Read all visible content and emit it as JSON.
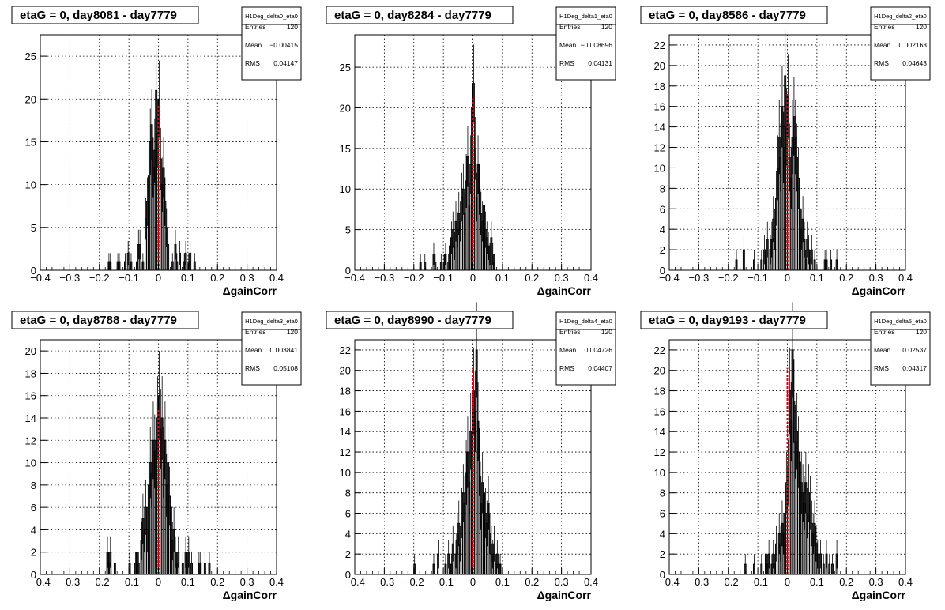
{
  "chart_data": [
    {
      "type": "histogram",
      "title": "etaG = 0, day8081 - day7779",
      "xlabel": "ΔgainCorr",
      "xlim": [
        -0.4,
        0.4
      ],
      "ylim": [
        0,
        27.5
      ],
      "yticks": [
        0,
        5,
        10,
        15,
        20,
        25
      ],
      "xticks": [
        "−0.4",
        "−0.3",
        "−0.2",
        "−0.1",
        "0",
        "0.1",
        "0.2",
        "0.3",
        "0.4"
      ],
      "stats": {
        "name": "H1Deg_delta0_eta0",
        "entries_label": "Entries",
        "entries": "120",
        "mean_label": "Mean",
        "mean": "−0.00415",
        "rms_label": "RMS",
        "rms": "0.04147"
      },
      "reference_line_x": 0,
      "bins": [
        [
          -0.17,
          1
        ],
        [
          -0.165,
          1
        ],
        [
          -0.14,
          1
        ],
        [
          -0.135,
          1
        ],
        [
          -0.115,
          1
        ],
        [
          -0.105,
          2
        ],
        [
          -0.095,
          1
        ],
        [
          -0.075,
          1
        ],
        [
          -0.07,
          3
        ],
        [
          -0.065,
          3
        ],
        [
          -0.055,
          1
        ],
        [
          -0.045,
          6
        ],
        [
          -0.04,
          8
        ],
        [
          -0.035,
          11
        ],
        [
          -0.03,
          15
        ],
        [
          -0.025,
          17
        ],
        [
          -0.02,
          12
        ],
        [
          -0.015,
          14
        ],
        [
          -0.01,
          21
        ],
        [
          -0.005,
          16
        ],
        [
          0,
          20
        ],
        [
          0.005,
          13
        ],
        [
          0.01,
          10
        ],
        [
          0.015,
          12
        ],
        [
          0.02,
          8
        ],
        [
          0.025,
          5
        ],
        [
          0.03,
          3
        ],
        [
          0.045,
          1
        ],
        [
          0.055,
          3
        ],
        [
          0.06,
          1
        ],
        [
          0.07,
          2
        ],
        [
          0.085,
          1
        ],
        [
          0.09,
          2
        ],
        [
          0.1,
          1
        ],
        [
          0.105,
          2
        ],
        [
          0.12,
          1
        ]
      ]
    },
    {
      "type": "histogram",
      "title": "etaG = 0, day8284 - day7779",
      "xlabel": "ΔgainCorr",
      "xlim": [
        -0.4,
        0.4
      ],
      "ylim": [
        0,
        29
      ],
      "yticks": [
        0,
        5,
        10,
        15,
        20,
        25
      ],
      "xticks": [
        "−0.4",
        "−0.3",
        "−0.2",
        "−0.1",
        "0",
        "0.1",
        "0.2",
        "0.3",
        "0.4"
      ],
      "stats": {
        "name": "H1Deg_delta1_eta0",
        "entries_label": "Entries",
        "entries": "120",
        "mean_label": "Mean",
        "mean": "−0.008696",
        "rms_label": "RMS",
        "rms": "0.04131"
      },
      "reference_line_x": 0,
      "bins": [
        [
          -0.18,
          1
        ],
        [
          -0.165,
          1
        ],
        [
          -0.135,
          2
        ],
        [
          -0.13,
          1
        ],
        [
          -0.11,
          1
        ],
        [
          -0.1,
          1
        ],
        [
          -0.095,
          2
        ],
        [
          -0.085,
          1
        ],
        [
          -0.08,
          3
        ],
        [
          -0.075,
          4
        ],
        [
          -0.07,
          5
        ],
        [
          -0.065,
          3
        ],
        [
          -0.06,
          6
        ],
        [
          -0.055,
          5
        ],
        [
          -0.05,
          7
        ],
        [
          -0.045,
          6
        ],
        [
          -0.04,
          9
        ],
        [
          -0.035,
          10
        ],
        [
          -0.03,
          7
        ],
        [
          -0.025,
          11
        ],
        [
          -0.02,
          14
        ],
        [
          -0.015,
          8
        ],
        [
          -0.01,
          13
        ],
        [
          -0.005,
          20
        ],
        [
          0,
          23
        ],
        [
          0.005,
          15
        ],
        [
          0.01,
          9
        ],
        [
          0.015,
          13
        ],
        [
          0.02,
          10
        ],
        [
          0.025,
          7
        ],
        [
          0.03,
          6
        ],
        [
          0.035,
          8
        ],
        [
          0.04,
          5
        ],
        [
          0.045,
          4
        ],
        [
          0.05,
          3
        ],
        [
          0.055,
          2
        ],
        [
          0.06,
          4
        ],
        [
          0.065,
          2
        ],
        [
          0.07,
          1
        ]
      ]
    },
    {
      "type": "histogram",
      "title": "etaG = 0, day8586 - day7779",
      "xlabel": "ΔgainCorr",
      "xlim": [
        -0.4,
        0.4
      ],
      "ylim": [
        0,
        23
      ],
      "yticks": [
        0,
        2,
        4,
        6,
        8,
        10,
        12,
        14,
        16,
        18,
        20,
        22
      ],
      "xticks": [
        "−0.4",
        "−0.3",
        "−0.2",
        "−0.1",
        "0",
        "0.1",
        "0.2",
        "0.3",
        "0.4"
      ],
      "stats": {
        "name": "H1Deg_delta2_eta0",
        "entries_label": "Entries",
        "entries": "120",
        "mean_label": "Mean",
        "mean": "0.002163",
        "rms_label": "RMS",
        "rms": "0.04643"
      },
      "reference_line_x": 0,
      "bins": [
        [
          -0.175,
          1
        ],
        [
          -0.15,
          2
        ],
        [
          -0.115,
          1
        ],
        [
          -0.09,
          1
        ],
        [
          -0.08,
          2
        ],
        [
          -0.075,
          1
        ],
        [
          -0.07,
          3
        ],
        [
          -0.06,
          2
        ],
        [
          -0.055,
          3
        ],
        [
          -0.05,
          5
        ],
        [
          -0.045,
          4
        ],
        [
          -0.04,
          7
        ],
        [
          -0.035,
          10
        ],
        [
          -0.03,
          13
        ],
        [
          -0.025,
          11
        ],
        [
          -0.02,
          16
        ],
        [
          -0.015,
          12
        ],
        [
          -0.01,
          19
        ],
        [
          -0.005,
          14
        ],
        [
          0,
          17
        ],
        [
          0.005,
          11
        ],
        [
          0.01,
          9
        ],
        [
          0.015,
          13
        ],
        [
          0.02,
          15
        ],
        [
          0.025,
          13
        ],
        [
          0.03,
          11
        ],
        [
          0.035,
          9
        ],
        [
          0.04,
          6
        ],
        [
          0.045,
          4
        ],
        [
          0.05,
          5
        ],
        [
          0.055,
          3
        ],
        [
          0.06,
          1
        ],
        [
          0.065,
          3
        ],
        [
          0.07,
          2
        ],
        [
          0.075,
          1
        ],
        [
          0.08,
          2
        ],
        [
          0.09,
          1
        ],
        [
          0.125,
          1
        ],
        [
          0.13,
          1
        ],
        [
          0.145,
          1
        ],
        [
          0.165,
          1
        ]
      ]
    },
    {
      "type": "histogram",
      "title": "etaG = 0, day8788 - day7779",
      "xlabel": "ΔgainCorr",
      "xlim": [
        -0.4,
        0.4
      ],
      "ylim": [
        0,
        21
      ],
      "yticks": [
        0,
        2,
        4,
        6,
        8,
        10,
        12,
        14,
        16,
        18,
        20
      ],
      "xticks": [
        "−0.4",
        "−0.3",
        "−0.2",
        "−0.1",
        "0",
        "0.1",
        "0.2",
        "0.3",
        "0.4"
      ],
      "stats": {
        "name": "H1Deg_delta3_eta0",
        "entries_label": "Entries",
        "entries": "120",
        "mean_label": "Mean",
        "mean": "0.003841",
        "rms_label": "RMS",
        "rms": "0.05108"
      },
      "reference_line_x": 0,
      "bins": [
        [
          -0.175,
          2
        ],
        [
          -0.17,
          1
        ],
        [
          -0.165,
          2
        ],
        [
          -0.15,
          1
        ],
        [
          -0.1,
          1
        ],
        [
          -0.08,
          1
        ],
        [
          -0.075,
          2
        ],
        [
          -0.07,
          1
        ],
        [
          -0.06,
          3
        ],
        [
          -0.055,
          5
        ],
        [
          -0.05,
          4
        ],
        [
          -0.045,
          6
        ],
        [
          -0.04,
          4
        ],
        [
          -0.035,
          8
        ],
        [
          -0.03,
          10
        ],
        [
          -0.025,
          9
        ],
        [
          -0.02,
          12
        ],
        [
          -0.015,
          11
        ],
        [
          -0.01,
          12
        ],
        [
          -0.005,
          14
        ],
        [
          0,
          16
        ],
        [
          0.005,
          13
        ],
        [
          0.01,
          14
        ],
        [
          0.015,
          10
        ],
        [
          0.02,
          12
        ],
        [
          0.025,
          8
        ],
        [
          0.03,
          10
        ],
        [
          0.035,
          7
        ],
        [
          0.04,
          6
        ],
        [
          0.045,
          3
        ],
        [
          0.05,
          4
        ],
        [
          0.055,
          2
        ],
        [
          0.06,
          1
        ],
        [
          0.065,
          2
        ],
        [
          0.08,
          1
        ],
        [
          0.09,
          2
        ],
        [
          0.095,
          1
        ],
        [
          0.1,
          2
        ],
        [
          0.11,
          1
        ],
        [
          0.135,
          1
        ],
        [
          0.14,
          1
        ],
        [
          0.155,
          1
        ],
        [
          0.17,
          1
        ]
      ]
    },
    {
      "type": "histogram",
      "title": "etaG = 0, day8990 - day7779",
      "xlabel": "ΔgainCorr",
      "xlim": [
        -0.4,
        0.4
      ],
      "ylim": [
        0,
        23
      ],
      "yticks": [
        0,
        2,
        4,
        6,
        8,
        10,
        12,
        14,
        16,
        18,
        20,
        22
      ],
      "xticks": [
        "−0.4",
        "−0.3",
        "−0.2",
        "−0.1",
        "0",
        "0.1",
        "0.2",
        "0.3",
        "0.4"
      ],
      "stats": {
        "name": "H1Deg_delta4_eta0",
        "entries_label": "Entries",
        "entries": "120",
        "mean_label": "Mean",
        "mean": "0.004726",
        "rms_label": "RMS",
        "rms": "0.04407"
      },
      "reference_line_x": 0,
      "bins": [
        [
          -0.2,
          1
        ],
        [
          -0.135,
          1
        ],
        [
          -0.12,
          2
        ],
        [
          -0.095,
          1
        ],
        [
          -0.085,
          2
        ],
        [
          -0.075,
          1
        ],
        [
          -0.07,
          3
        ],
        [
          -0.06,
          2
        ],
        [
          -0.055,
          4
        ],
        [
          -0.05,
          5
        ],
        [
          -0.045,
          3
        ],
        [
          -0.04,
          6
        ],
        [
          -0.035,
          8
        ],
        [
          -0.03,
          7
        ],
        [
          -0.025,
          10
        ],
        [
          -0.02,
          12
        ],
        [
          -0.015,
          9
        ],
        [
          -0.01,
          14
        ],
        [
          -0.005,
          12
        ],
        [
          0,
          18
        ],
        [
          0.005,
          16
        ],
        [
          0.01,
          22
        ],
        [
          0.015,
          15
        ],
        [
          0.02,
          11
        ],
        [
          0.025,
          7
        ],
        [
          0.03,
          9
        ],
        [
          0.035,
          8
        ],
        [
          0.04,
          6
        ],
        [
          0.045,
          5
        ],
        [
          0.05,
          7
        ],
        [
          0.055,
          4
        ],
        [
          0.06,
          3
        ],
        [
          0.065,
          2
        ],
        [
          0.07,
          3
        ],
        [
          0.075,
          1
        ],
        [
          0.08,
          2
        ],
        [
          0.085,
          1
        ],
        [
          0.09,
          1
        ]
      ]
    },
    {
      "type": "histogram",
      "title": "etaG = 0, day9193 - day7779",
      "xlabel": "ΔgainCorr",
      "xlim": [
        -0.4,
        0.4
      ],
      "ylim": [
        0,
        23
      ],
      "yticks": [
        0,
        2,
        4,
        6,
        8,
        10,
        12,
        14,
        16,
        18,
        20,
        22
      ],
      "xticks": [
        "−0.4",
        "−0.3",
        "−0.2",
        "−0.1",
        "0",
        "0.1",
        "0.2",
        "0.3",
        "0.4"
      ],
      "stats": {
        "name": "H1Deg_delta5_eta0",
        "entries_label": "Entries",
        "entries": "120",
        "mean_label": "Mean",
        "mean": "0.02537",
        "rms_label": "RMS",
        "rms": "0.04317"
      },
      "reference_line_x": 0,
      "bins": [
        [
          -0.145,
          1
        ],
        [
          -0.115,
          1
        ],
        [
          -0.09,
          1
        ],
        [
          -0.075,
          2
        ],
        [
          -0.07,
          1
        ],
        [
          -0.065,
          2
        ],
        [
          -0.055,
          1
        ],
        [
          -0.05,
          2
        ],
        [
          -0.045,
          1
        ],
        [
          -0.04,
          3
        ],
        [
          -0.03,
          4
        ],
        [
          -0.025,
          3
        ],
        [
          -0.02,
          5
        ],
        [
          -0.015,
          4
        ],
        [
          -0.01,
          6
        ],
        [
          -0.005,
          9
        ],
        [
          0,
          10
        ],
        [
          0.005,
          18
        ],
        [
          0.01,
          15
        ],
        [
          0.015,
          22
        ],
        [
          0.02,
          17
        ],
        [
          0.025,
          13
        ],
        [
          0.03,
          14
        ],
        [
          0.035,
          12
        ],
        [
          0.04,
          11
        ],
        [
          0.045,
          9
        ],
        [
          0.05,
          8
        ],
        [
          0.055,
          7
        ],
        [
          0.06,
          9
        ],
        [
          0.065,
          6
        ],
        [
          0.07,
          8
        ],
        [
          0.075,
          7
        ],
        [
          0.08,
          5
        ],
        [
          0.085,
          4
        ],
        [
          0.09,
          5
        ],
        [
          0.095,
          3
        ],
        [
          0.1,
          2
        ],
        [
          0.11,
          2
        ],
        [
          0.12,
          1
        ],
        [
          0.13,
          2
        ],
        [
          0.14,
          1
        ],
        [
          0.15,
          1
        ],
        [
          0.165,
          2
        ]
      ]
    }
  ]
}
